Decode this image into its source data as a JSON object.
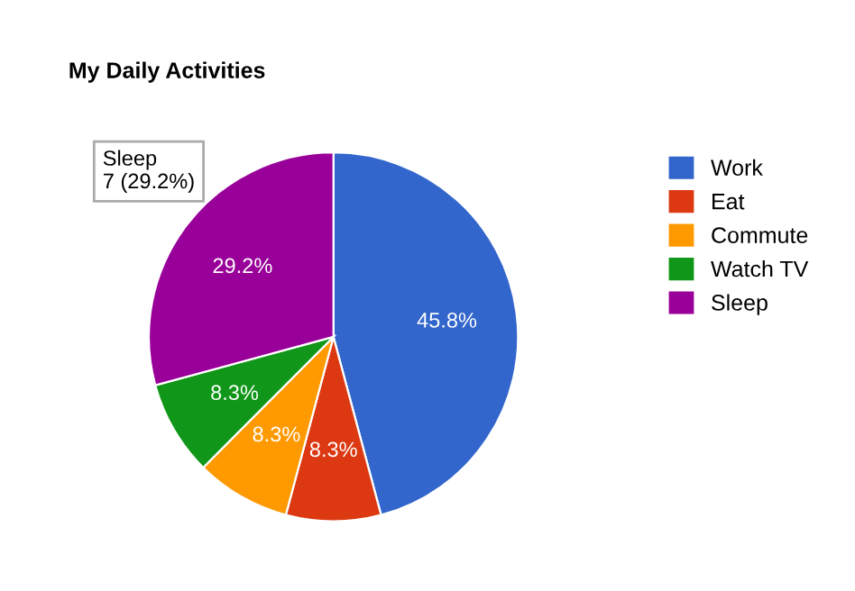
{
  "chart_data": {
    "type": "pie",
    "title": "My Daily Activities",
    "categories": [
      "Work",
      "Eat",
      "Commute",
      "Watch TV",
      "Sleep"
    ],
    "values": [
      45.8,
      8.3,
      8.3,
      8.3,
      29.2
    ],
    "value_labels": [
      "45.8%",
      "8.3%",
      "8.3%",
      "8.3%",
      "29.2%"
    ],
    "colors": [
      "#3366cc",
      "#dc3912",
      "#ff9900",
      "#109618",
      "#990099"
    ],
    "annotations": [
      "Sleep\n7 (29.2%)"
    ],
    "legend": "right"
  }
}
